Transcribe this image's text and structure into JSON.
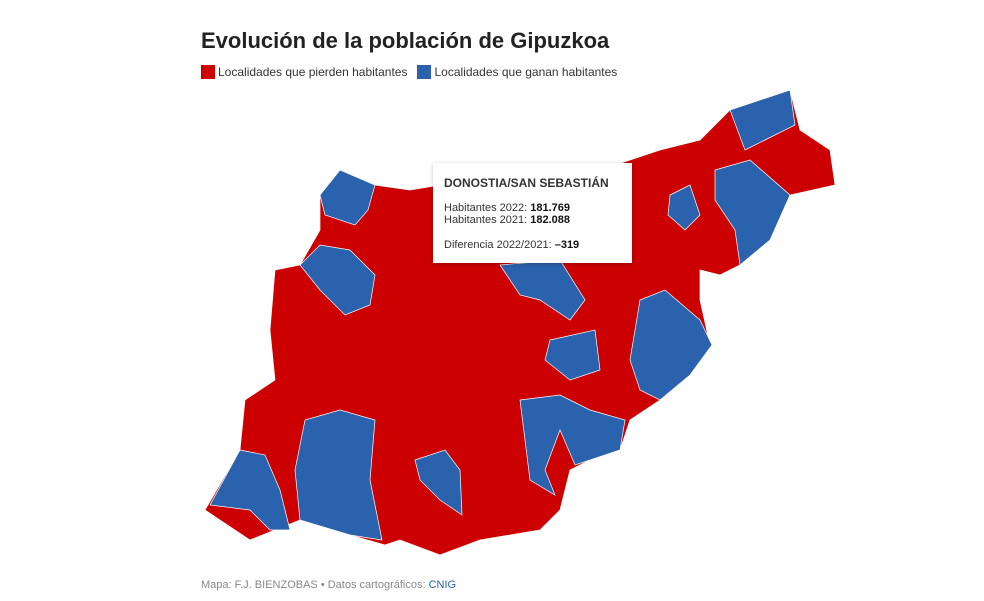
{
  "header": {
    "title": "Evolución de la población de Gipuzkoa"
  },
  "legend": [
    {
      "label": "Localidades que pierden habitantes",
      "color": "#cc0000"
    },
    {
      "label": "Localidades que ganan habitantes",
      "color": "#2a62ae"
    }
  ],
  "tooltip": {
    "name": "DONOSTIA/SAN SEBASTIÁN",
    "rows": [
      {
        "label": "Habitantes 2022:",
        "value": "181.769"
      },
      {
        "label": "Habitantes 2021:",
        "value": "182.088"
      }
    ],
    "difference": {
      "label": "Diferencia 2022/2021:",
      "value": "–319"
    }
  },
  "footer": {
    "credit": "Mapa: F.J. BIENZOBAS • Datos cartográficos:",
    "source": "CNIG"
  }
}
